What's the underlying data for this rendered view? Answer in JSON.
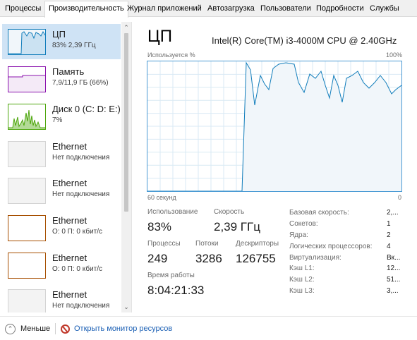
{
  "tabs": [
    "Процессы",
    "Производительность",
    "Журнал приложений",
    "Автозагрузка",
    "Пользователи",
    "Подробности",
    "Службы"
  ],
  "sidebar": {
    "items": [
      {
        "name": "ЦП",
        "sub": "83% 2,39 ГГц",
        "color": "#117dbb",
        "selected": true
      },
      {
        "name": "Память",
        "sub": "7,9/11,9 ГБ (66%)",
        "color": "#8b12ae",
        "selected": false
      },
      {
        "name": "Диск 0 (C: D: E:)",
        "sub": "7%",
        "color": "#4da60c",
        "selected": false
      },
      {
        "name": "Ethernet",
        "sub": "Нет подключения",
        "color": "#c8c8c8",
        "selected": false
      },
      {
        "name": "Ethernet",
        "sub": "Нет подключения",
        "color": "#c8c8c8",
        "selected": false
      },
      {
        "name": "Ethernet",
        "sub": "О: 0 П: 0 кбит/с",
        "color": "#a74f01",
        "selected": false
      },
      {
        "name": "Ethernet",
        "sub": "О: 0 П: 0 кбит/с",
        "color": "#a74f01",
        "selected": false
      },
      {
        "name": "Ethernet",
        "sub": "Нет подключения",
        "color": "#c8c8c8",
        "selected": false
      }
    ]
  },
  "main": {
    "title": "ЦП",
    "cpu_model": "Intel(R) Core(TM) i3-4000M CPU @ 2.40GHz",
    "graph": {
      "top_left": "Используется %",
      "top_right": "100%",
      "bottom_left": "60 секунд",
      "bottom_right": "0",
      "line_color": "#117dbb",
      "fill_color": "#f1f6fa",
      "grid_color": "#d9eaf4"
    },
    "stats": {
      "usage_label": "Использование",
      "usage_value": "83%",
      "speed_label": "Скорость",
      "speed_value": "2,39 ГГц",
      "processes_label": "Процессы",
      "processes_value": "249",
      "threads_label": "Потоки",
      "threads_value": "3286",
      "handles_label": "Дескрипторы",
      "handles_value": "126755",
      "uptime_label": "Время работы",
      "uptime_value": "8:04:21:33"
    },
    "specs": [
      {
        "label": "Базовая скорость:",
        "value": "2,..."
      },
      {
        "label": "Сокетов:",
        "value": "1"
      },
      {
        "label": "Ядра:",
        "value": "2"
      },
      {
        "label": "Логических процессоров:",
        "value": "4"
      },
      {
        "label": "Виртуализация:",
        "value": "Вк..."
      },
      {
        "label": "Кэш L1:",
        "value": "12..."
      },
      {
        "label": "Кэш L2:",
        "value": "51..."
      },
      {
        "label": "Кэш L3:",
        "value": "3,..."
      }
    ]
  },
  "footer": {
    "less_label": "Меньше",
    "monitor_label": "Открыть монитор ресурсов"
  }
}
